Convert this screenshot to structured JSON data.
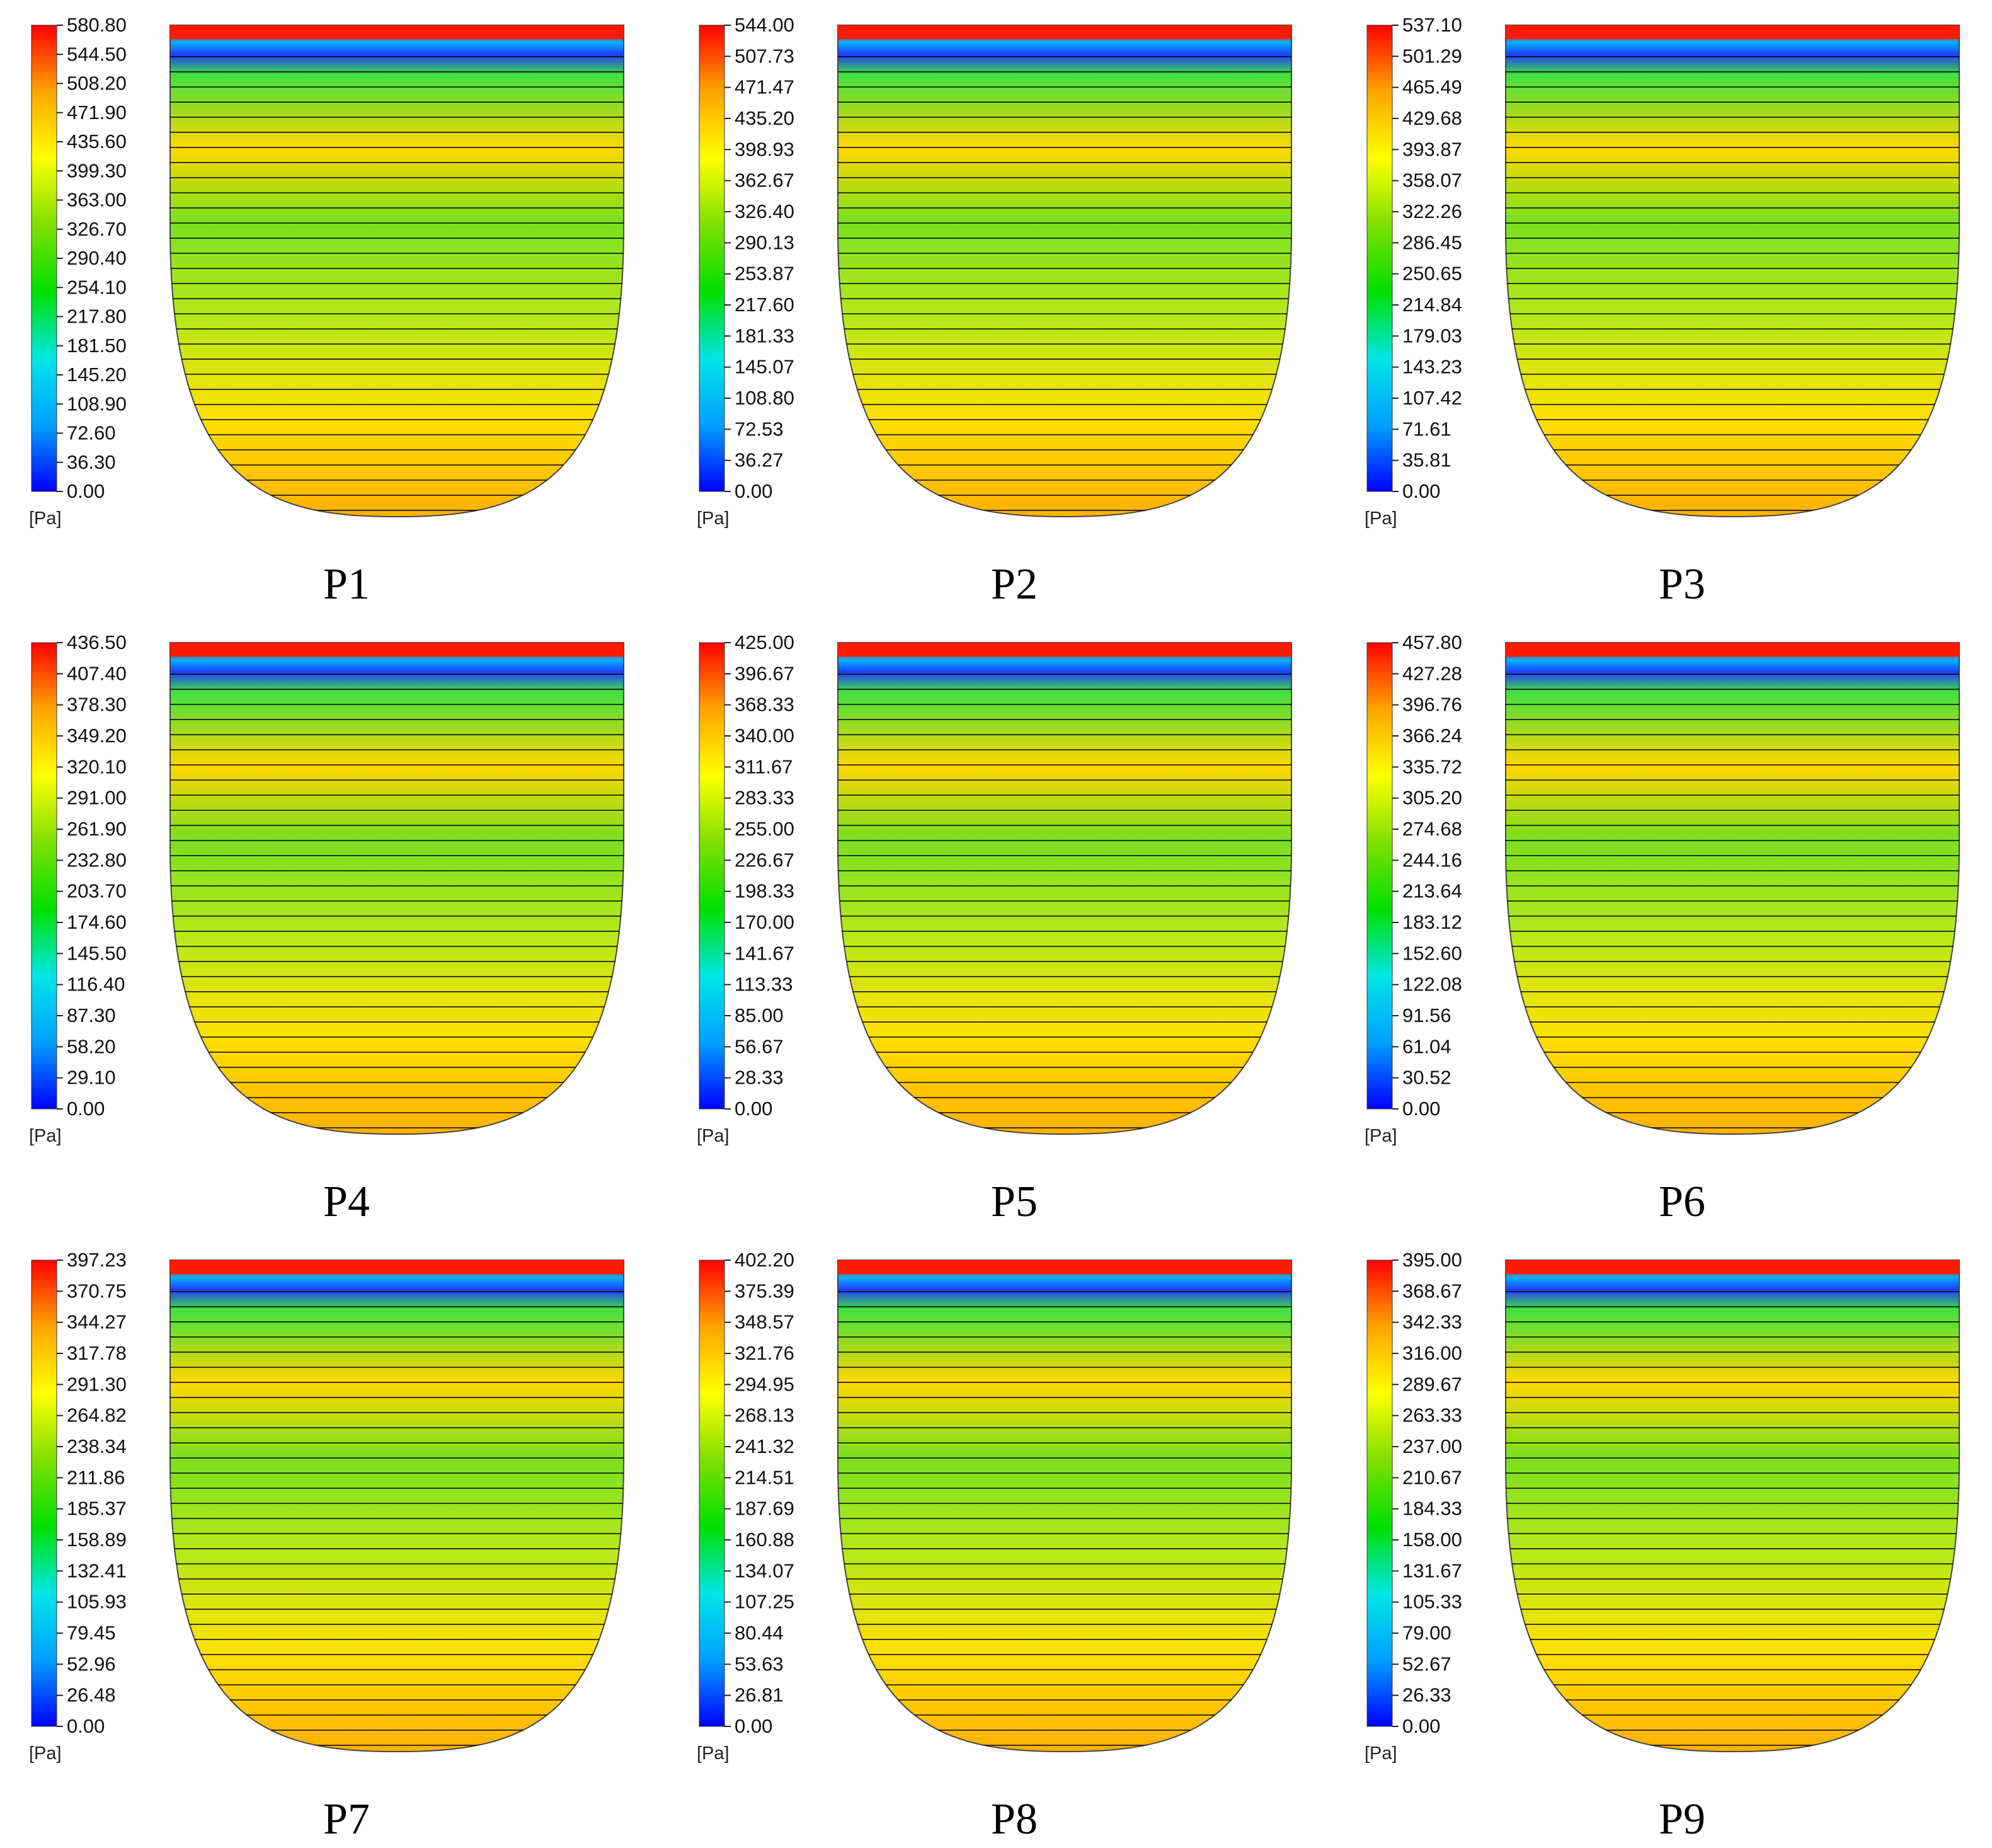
{
  "figure": {
    "unit_label": "[Pa]",
    "colors": {
      "scale_stops": [
        "#0000ff",
        "#00a0ff",
        "#00e6e6",
        "#00e000",
        "#7fe000",
        "#ffff00",
        "#ffa500",
        "#ff0000"
      ],
      "top_band": "#ff1a00",
      "row_line": "#000000"
    },
    "panels": [
      {
        "id": "P1",
        "label": "P1",
        "ticks": [
          "580.80",
          "544.50",
          "508.20",
          "471.90",
          "435.60",
          "399.30",
          "363.00",
          "326.70",
          "290.40",
          "254.10",
          "217.80",
          "181.50",
          "145.20",
          "108.90",
          "72.60",
          "36.30",
          "0.00"
        ]
      },
      {
        "id": "P2",
        "label": "P2",
        "ticks": [
          "544.00",
          "507.73",
          "471.47",
          "435.20",
          "398.93",
          "362.67",
          "326.40",
          "290.13",
          "253.87",
          "217.60",
          "181.33",
          "145.07",
          "108.80",
          "72.53",
          "36.27",
          "0.00"
        ]
      },
      {
        "id": "P3",
        "label": "P3",
        "ticks": [
          "537.10",
          "501.29",
          "465.49",
          "429.68",
          "393.87",
          "358.07",
          "322.26",
          "286.45",
          "250.65",
          "214.84",
          "179.03",
          "143.23",
          "107.42",
          "71.61",
          "35.81",
          "0.00"
        ]
      },
      {
        "id": "P4",
        "label": "P4",
        "ticks": [
          "436.50",
          "407.40",
          "378.30",
          "349.20",
          "320.10",
          "291.00",
          "261.90",
          "232.80",
          "203.70",
          "174.60",
          "145.50",
          "116.40",
          "87.30",
          "58.20",
          "29.10",
          "0.00"
        ]
      },
      {
        "id": "P5",
        "label": "P5",
        "ticks": [
          "425.00",
          "396.67",
          "368.33",
          "340.00",
          "311.67",
          "283.33",
          "255.00",
          "226.67",
          "198.33",
          "170.00",
          "141.67",
          "113.33",
          "85.00",
          "56.67",
          "28.33",
          "0.00"
        ]
      },
      {
        "id": "P6",
        "label": "P6",
        "ticks": [
          "457.80",
          "427.28",
          "396.76",
          "366.24",
          "335.72",
          "305.20",
          "274.68",
          "244.16",
          "213.64",
          "183.12",
          "152.60",
          "122.08",
          "91.56",
          "61.04",
          "30.52",
          "0.00"
        ]
      },
      {
        "id": "P7",
        "label": "P7",
        "ticks": [
          "397.23",
          "370.75",
          "344.27",
          "317.78",
          "291.30",
          "264.82",
          "238.34",
          "211.86",
          "185.37",
          "158.89",
          "132.41",
          "105.93",
          "79.45",
          "52.96",
          "26.48",
          "0.00"
        ]
      },
      {
        "id": "P8",
        "label": "P8",
        "ticks": [
          "402.20",
          "375.39",
          "348.57",
          "321.76",
          "294.95",
          "268.13",
          "241.32",
          "214.51",
          "187.69",
          "160.88",
          "134.07",
          "107.25",
          "80.44",
          "53.63",
          "26.81",
          "0.00"
        ]
      },
      {
        "id": "P9",
        "label": "P9",
        "ticks": [
          "395.00",
          "368.67",
          "342.33",
          "316.00",
          "289.67",
          "263.33",
          "237.00",
          "210.67",
          "184.33",
          "158.00",
          "131.67",
          "105.33",
          "79.00",
          "52.67",
          "26.33",
          "0.00"
        ]
      }
    ]
  }
}
